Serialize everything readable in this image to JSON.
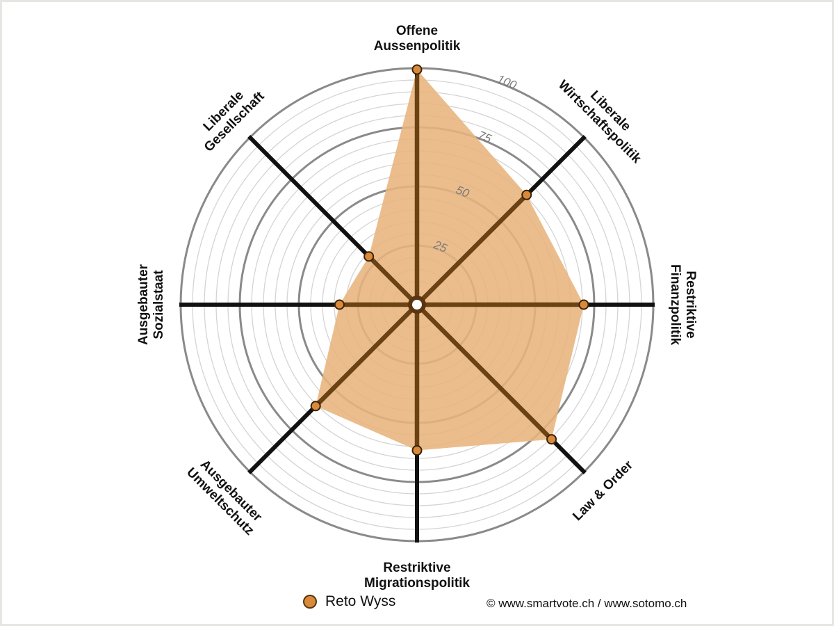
{
  "chart_data": {
    "type": "radar",
    "axes": [
      {
        "label": [
          "Offene",
          "Aussenpolitik"
        ],
        "value": 100
      },
      {
        "label": [
          "Liberale",
          "Wirtschaftspolitik"
        ],
        "value": 66
      },
      {
        "label": [
          "Restriktive",
          "Finanzpolitik"
        ],
        "value": 71
      },
      {
        "label": [
          "Law & Order"
        ],
        "value": 81
      },
      {
        "label": [
          "Restriktive",
          "Migrationspolitik"
        ],
        "value": 62
      },
      {
        "label": [
          "Ausgebauter",
          "Umweltschutz"
        ],
        "value": 61
      },
      {
        "label": [
          "Ausgebauter",
          "Sozialstaat"
        ],
        "value": 33
      },
      {
        "label": [
          "Liberale",
          "Gesellschaft"
        ],
        "value": 29
      }
    ],
    "range": [
      0,
      100
    ],
    "ticks": [
      25,
      50,
      75,
      100
    ],
    "series": [
      {
        "name": "Reto Wyss",
        "color": "#d88a3a",
        "fill": "#e8b47c"
      }
    ]
  },
  "legend": {
    "name": "Reto Wyss"
  },
  "credit": "© www.smartvote.ch / www.sotomo.ch"
}
